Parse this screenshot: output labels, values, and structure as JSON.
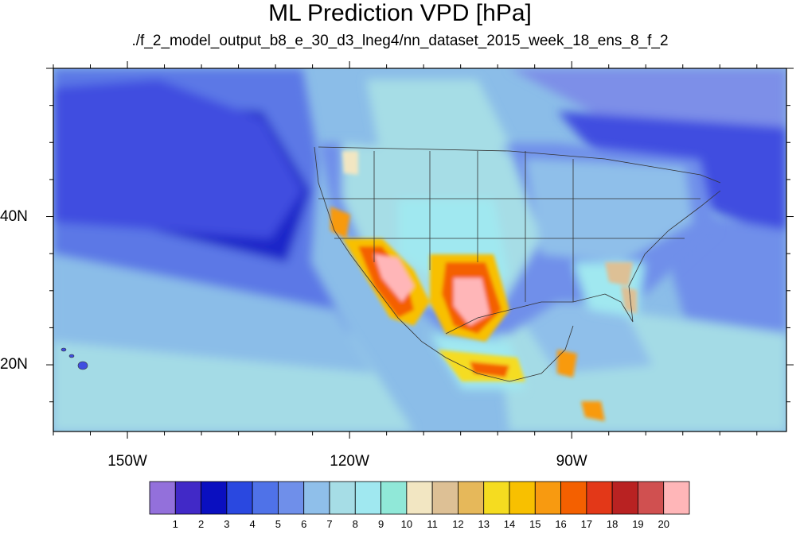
{
  "title": "ML Prediction VPD [hPa]",
  "subtitle": "./f_2_model_output_b8_e_30_d3_lneg4/nn_dataset_2015_week_18_ens_8_f_2",
  "map": {
    "lon_range": [
      -160,
      -61
    ],
    "lat_range": [
      11,
      60
    ],
    "lat_labels": [
      {
        "value": 40,
        "label": "40N"
      },
      {
        "value": 20,
        "label": "20N"
      }
    ],
    "lon_labels": [
      {
        "value": -150,
        "label": "150W"
      },
      {
        "value": -120,
        "label": "120W"
      },
      {
        "value": -90,
        "label": "90W"
      }
    ],
    "ocean_colors": [
      "#7d8fe8",
      "#5c78e6",
      "#3f4ee0",
      "#1f26c9",
      "#8bbde8",
      "#a4dbe6"
    ]
  },
  "colorbar": {
    "levels": [
      "1",
      "2",
      "3",
      "4",
      "5",
      "6",
      "7",
      "8",
      "9",
      "10",
      "11",
      "12",
      "13",
      "14",
      "15",
      "16",
      "17",
      "18",
      "19",
      "20"
    ],
    "colors": [
      "#9370db",
      "#4129c7",
      "#0a0fc0",
      "#2a48e0",
      "#4f72e8",
      "#6f8fea",
      "#8fbfea",
      "#a6dde6",
      "#a0e8f0",
      "#90e8d8",
      "#f2e6c2",
      "#ddc095",
      "#e6b85a",
      "#f5dc20",
      "#f8c000",
      "#f89a10",
      "#f46000",
      "#e33818",
      "#b92222",
      "#d05050",
      "#ffb6b8"
    ]
  }
}
